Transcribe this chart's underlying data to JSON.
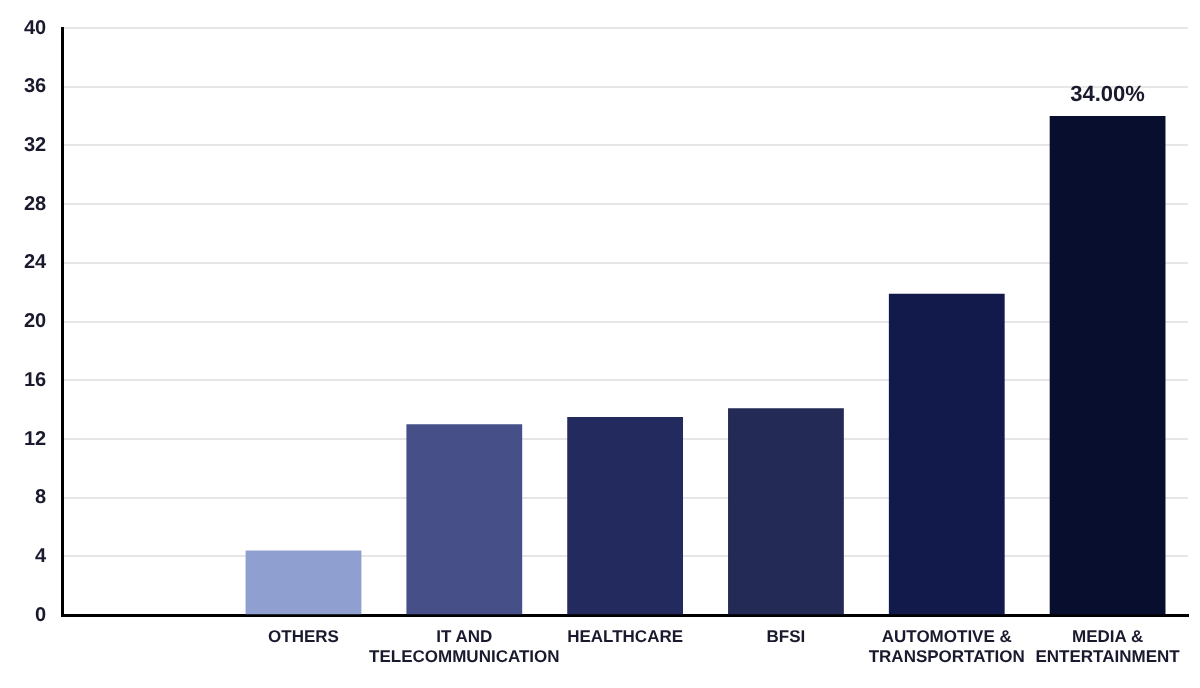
{
  "chart_data": {
    "type": "bar",
    "categories": [
      null,
      "OTHERS",
      "IT AND TELECOMMUNICATION",
      "HEALTHCARE",
      "BFSI",
      "AUTOMOTIVE & TRANSPORTATION",
      "MEDIA & ENTERTAINMENT"
    ],
    "values": [
      null,
      4.4,
      13.0,
      13.5,
      14.1,
      21.9,
      34.0
    ],
    "colors": [
      "#8e9fd0",
      "#8e9fd0",
      "#464f87",
      "#232b5e",
      "#222a55",
      "#121a4c",
      "#080f2e"
    ],
    "value_labels": [
      null,
      null,
      null,
      null,
      null,
      null,
      "34.00%"
    ],
    "ylim": [
      0,
      40
    ],
    "yticks": [
      0,
      4,
      8,
      12,
      16,
      20,
      24,
      28,
      32,
      36,
      40
    ],
    "grid": "y",
    "legend": false
  }
}
